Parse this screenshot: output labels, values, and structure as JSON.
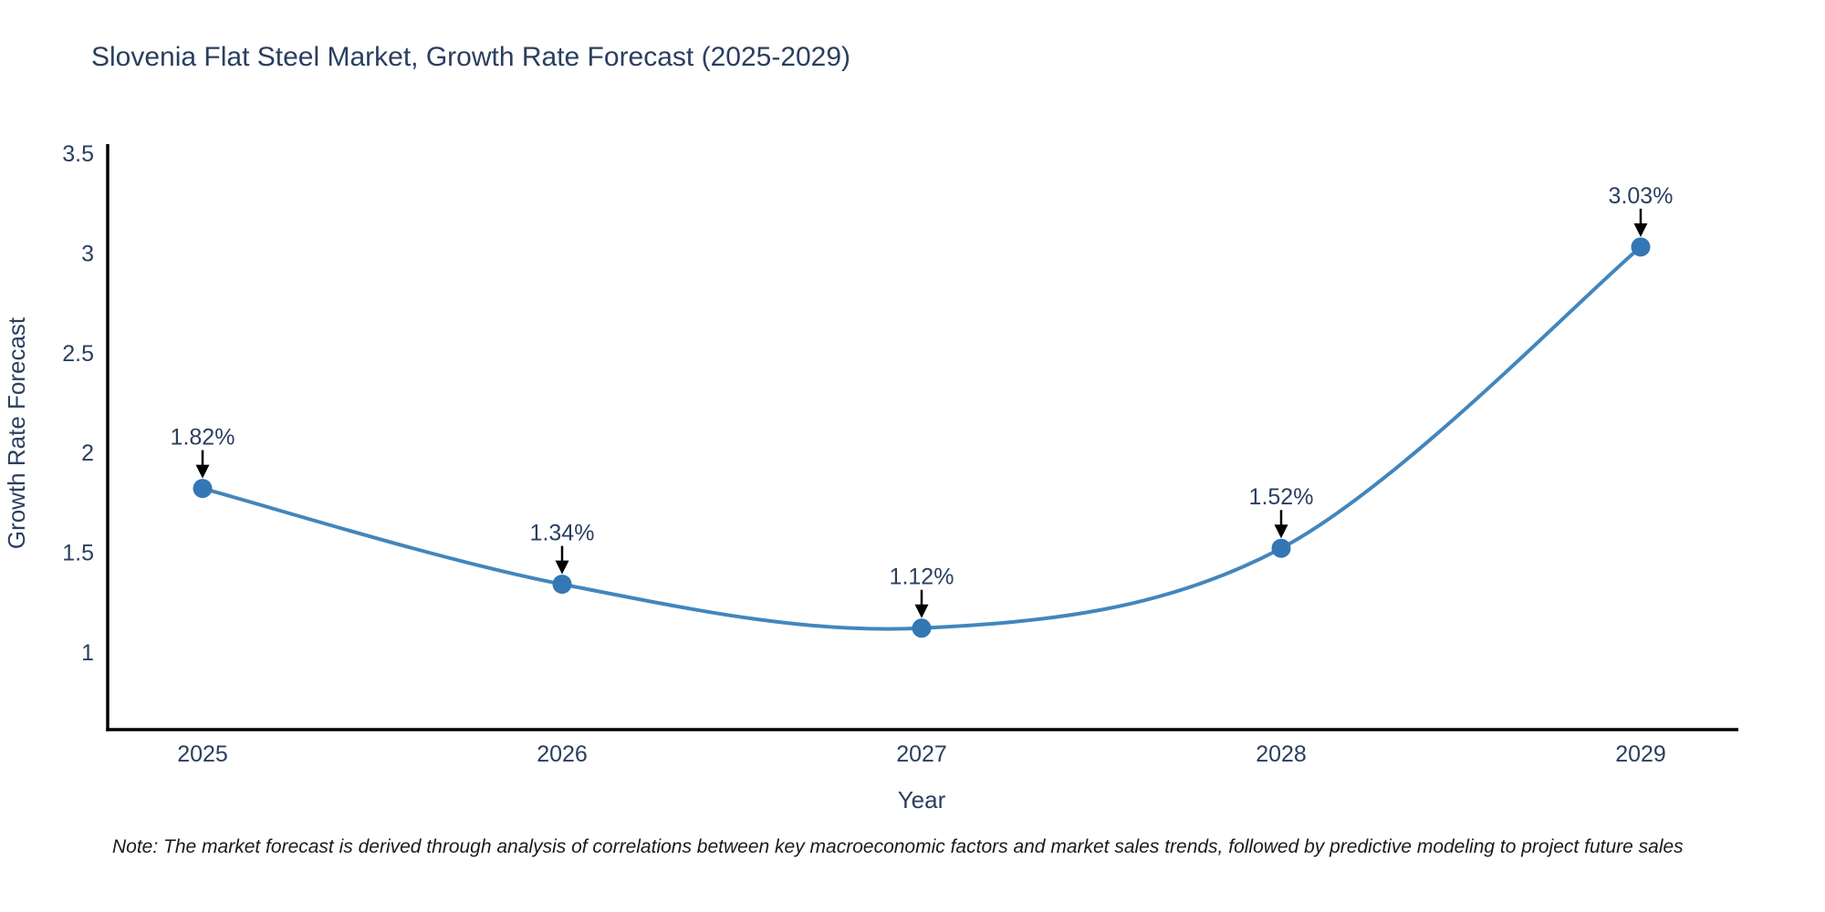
{
  "title": "Slovenia Flat Steel Market, Growth Rate Forecast (2025-2029)",
  "note": "Note: The market forecast is derived through analysis of correlations between key macroeconomic factors and market sales trends, followed by predictive modeling to project future sales",
  "chart_data": {
    "type": "line",
    "title": "Slovenia Flat Steel Market, Growth Rate Forecast (2025-2029)",
    "xlabel": "Year",
    "ylabel": "Growth Rate Forecast",
    "categories": [
      "2025",
      "2026",
      "2027",
      "2028",
      "2029"
    ],
    "series": [
      {
        "name": "Growth Rate Forecast",
        "values": [
          1.82,
          1.34,
          1.12,
          1.52,
          3.03
        ],
        "point_labels": [
          "1.82%",
          "1.34%",
          "1.12%",
          "1.52%",
          "3.03%"
        ]
      }
    ],
    "yticks": [
      1,
      1.5,
      2,
      2.5,
      3,
      3.5
    ],
    "ytick_labels": [
      "1",
      "1.5",
      "2",
      "2.5",
      "3",
      "3.5"
    ],
    "ylim": [
      0.61,
      3.55
    ],
    "grid": false,
    "legend_position": "none",
    "smooth_line": true,
    "line_color": "#4286bd",
    "marker_color": "#3377b5",
    "axis_color": "#000000",
    "text_color": "#2a3f5f",
    "annotation_color": "#2a3f5f",
    "arrow_color": "#000000"
  }
}
